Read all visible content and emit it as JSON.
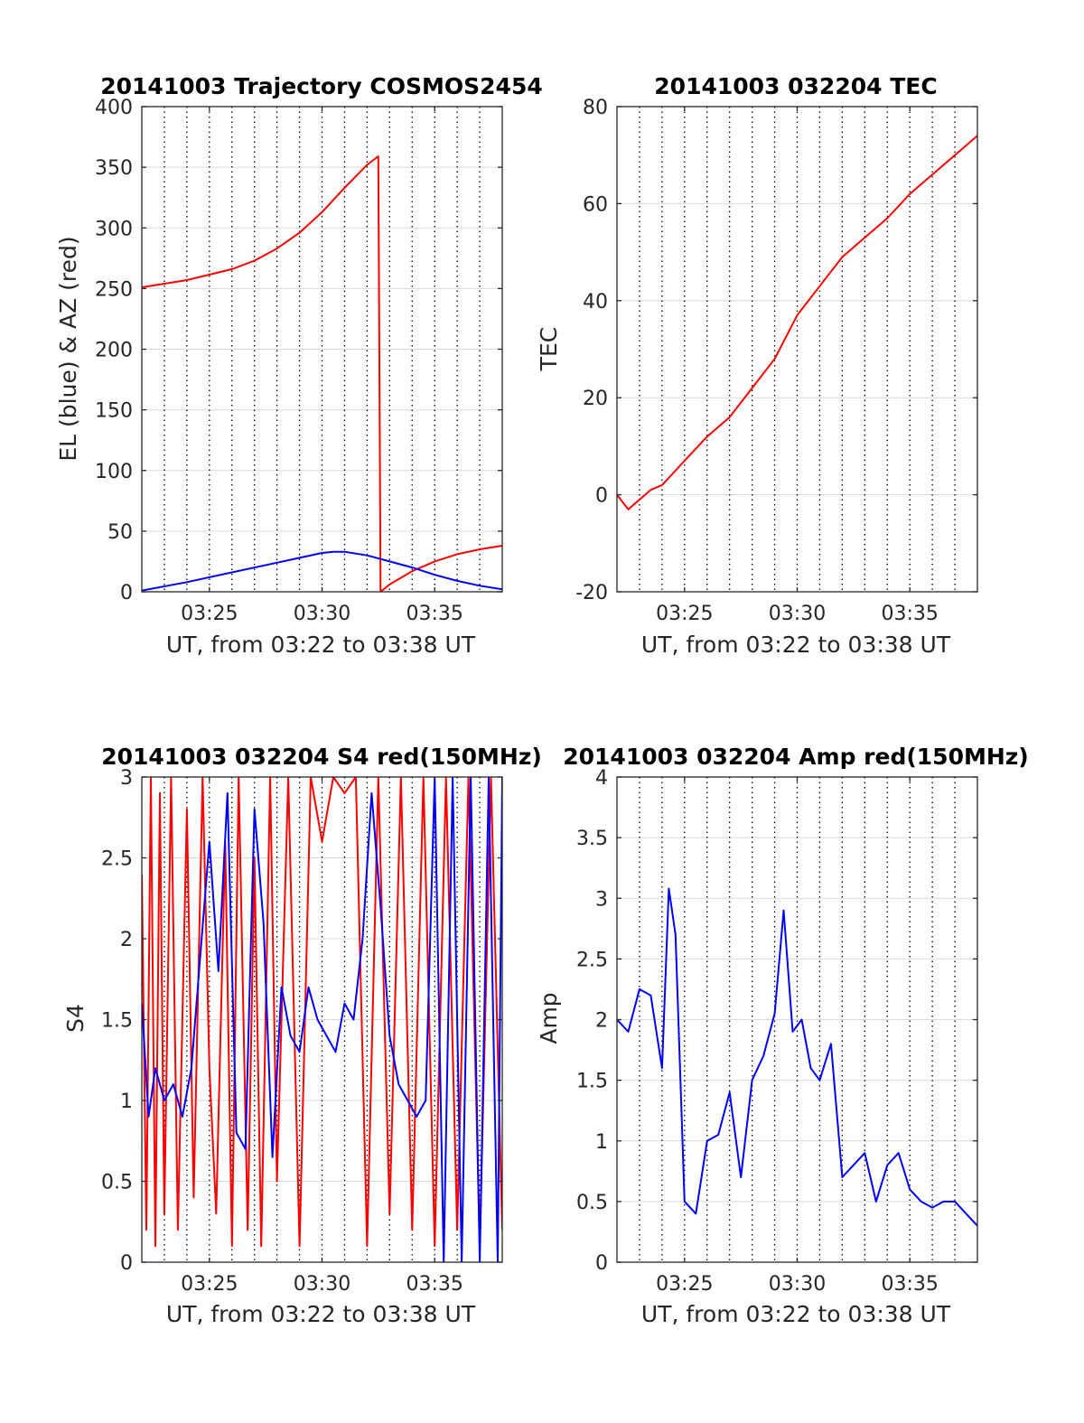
{
  "figure_colors": {
    "background": "#ffffff",
    "axis": "#262626",
    "grid": "#d9d9d9",
    "vgrid": "#000000",
    "red": "#ff0000",
    "blue": "#0000ff"
  },
  "chart_data": [
    {
      "type": "line",
      "title": "20141003 Trajectory COSMOS2454",
      "xlabel": "UT, from 03:22 to 03:38 UT",
      "ylabel": "EL (blue) & AZ (red)",
      "xlim": [
        "03:22",
        "03:38"
      ],
      "ylim": [
        0,
        400
      ],
      "xticks": [
        "03:25",
        "03:30",
        "03:35"
      ],
      "yticks": [
        0,
        50,
        100,
        150,
        200,
        250,
        300,
        350,
        400
      ],
      "grid": true,
      "series": [
        {
          "color": "red",
          "x": [
            "03:22",
            "03:24",
            "03:26",
            "03:27",
            "03:28",
            "03:29",
            "03:30",
            "03:31",
            "03:32",
            "03:32.5",
            "03:32.6",
            "03:33",
            "03:34",
            "03:35",
            "03:36",
            "03:37",
            "03:38"
          ],
          "values": [
            251,
            257,
            266,
            273,
            283,
            296,
            313,
            333,
            352,
            359,
            0,
            6,
            17,
            25,
            31,
            35,
            38
          ]
        },
        {
          "color": "blue",
          "x": [
            "03:22",
            "03:24",
            "03:26",
            "03:28",
            "03:29",
            "03:30",
            "03:30.5",
            "03:31",
            "03:32",
            "03:33",
            "03:34",
            "03:35",
            "03:36",
            "03:37",
            "03:38"
          ],
          "values": [
            1,
            8,
            16,
            24,
            28,
            32,
            33,
            33,
            30,
            25,
            20,
            14,
            9,
            5,
            2
          ]
        }
      ]
    },
    {
      "type": "line",
      "title": "20141003 032204 TEC",
      "xlabel": "UT, from 03:22 to 03:38 UT",
      "ylabel": "TEC",
      "xlim": [
        "03:22",
        "03:38"
      ],
      "ylim": [
        -20,
        80
      ],
      "xticks": [
        "03:25",
        "03:30",
        "03:35"
      ],
      "yticks": [
        -20,
        0,
        20,
        40,
        60,
        80
      ],
      "grid": true,
      "series": [
        {
          "color": "red",
          "x": [
            "03:22",
            "03:22.5",
            "03:23",
            "03:23.5",
            "03:24",
            "03:25",
            "03:26",
            "03:27",
            "03:28",
            "03:29",
            "03:30",
            "03:31",
            "03:32",
            "03:33",
            "03:34",
            "03:35",
            "03:36",
            "03:37",
            "03:38"
          ],
          "values": [
            0,
            -3,
            -1,
            1,
            2,
            7,
            12,
            16,
            22,
            28,
            37,
            43,
            49,
            53,
            57,
            62,
            66,
            70,
            74
          ]
        }
      ]
    },
    {
      "type": "line",
      "title": "20141003 032204 S4 red(150MHz)",
      "xlabel": "UT, from 03:22 to 03:38 UT",
      "ylabel": "S4",
      "xlim": [
        "03:22",
        "03:38"
      ],
      "ylim": [
        0,
        3
      ],
      "xticks": [
        "03:25",
        "03:30",
        "03:35"
      ],
      "yticks": [
        0,
        0.5,
        1,
        1.5,
        2,
        2.5,
        3
      ],
      "grid": true,
      "series": [
        {
          "color": "red",
          "x": [
            "03:22",
            "03:22.2",
            "03:22.4",
            "03:22.6",
            "03:22.8",
            "03:23",
            "03:23.3",
            "03:23.6",
            "03:24",
            "03:24.3",
            "03:24.7",
            "03:25",
            "03:25.3",
            "03:25.7",
            "03:26",
            "03:26.3",
            "03:26.7",
            "03:27",
            "03:27.3",
            "03:27.7",
            "03:28",
            "03:28.5",
            "03:29",
            "03:29.5",
            "03:30",
            "03:30.5",
            "03:31",
            "03:31.5",
            "03:32",
            "03:32.5",
            "03:33",
            "03:33.5",
            "03:34",
            "03:34.5",
            "03:35",
            "03:35.5",
            "03:36",
            "03:36.5",
            "03:37",
            "03:37.5",
            "03:38"
          ],
          "values": [
            2.4,
            0.2,
            3,
            0.1,
            2.9,
            0.3,
            3,
            0.2,
            2.8,
            0.4,
            3,
            1.2,
            0.3,
            2.6,
            0.1,
            3,
            0.2,
            2.5,
            0.1,
            3,
            0.5,
            3,
            0.1,
            3,
            2.6,
            3,
            2.9,
            3,
            0.1,
            3,
            0.3,
            3,
            0.2,
            3,
            0.1,
            3,
            0.2,
            3,
            0.1,
            3,
            0.2
          ]
        },
        {
          "color": "blue",
          "x": [
            "03:22",
            "03:22.3",
            "03:22.6",
            "03:23",
            "03:23.4",
            "03:23.8",
            "03:24.2",
            "03:24.6",
            "03:25",
            "03:25.4",
            "03:25.8",
            "03:26.2",
            "03:26.6",
            "03:27",
            "03:27.4",
            "03:27.8",
            "03:28.2",
            "03:28.6",
            "03:29",
            "03:29.4",
            "03:29.8",
            "03:30.2",
            "03:30.6",
            "03:31",
            "03:31.4",
            "03:31.8",
            "03:32.2",
            "03:32.6",
            "03:33",
            "03:33.4",
            "03:33.8",
            "03:34.2",
            "03:34.6",
            "03:35",
            "03:35.4",
            "03:35.8",
            "03:36.2",
            "03:36.6",
            "03:37",
            "03:37.4",
            "03:37.8",
            "03:38"
          ],
          "values": [
            1.6,
            0.9,
            1.2,
            1,
            1.1,
            0.9,
            1.2,
            1.9,
            2.6,
            1.8,
            2.9,
            0.8,
            0.7,
            2.8,
            2.1,
            0.65,
            1.7,
            1.4,
            1.3,
            1.7,
            1.5,
            1.4,
            1.3,
            1.6,
            1.5,
            2.0,
            2.9,
            2.2,
            1.4,
            1.1,
            1.0,
            0.9,
            1.0,
            3,
            0,
            3,
            0,
            3,
            0,
            3,
            0,
            3
          ]
        }
      ]
    },
    {
      "type": "line",
      "title": "20141003 032204 Amp red(150MHz)",
      "xlabel": "UT, from 03:22 to 03:38 UT",
      "ylabel": "Amp",
      "xlim": [
        "03:22",
        "03:38"
      ],
      "ylim": [
        0,
        4
      ],
      "xticks": [
        "03:25",
        "03:30",
        "03:35"
      ],
      "yticks": [
        0,
        0.5,
        1,
        1.5,
        2,
        2.5,
        3,
        3.5,
        4
      ],
      "grid": true,
      "series": [
        {
          "color": "blue",
          "x": [
            "03:22",
            "03:22.5",
            "03:23",
            "03:23.5",
            "03:24",
            "03:24.3",
            "03:24.6",
            "03:25",
            "03:25.5",
            "03:26",
            "03:26.5",
            "03:27",
            "03:27.5",
            "03:28",
            "03:28.5",
            "03:29",
            "03:29.4",
            "03:29.8",
            "03:30.2",
            "03:30.6",
            "03:31",
            "03:31.5",
            "03:32",
            "03:32.5",
            "03:33",
            "03:33.5",
            "03:34",
            "03:34.5",
            "03:35",
            "03:35.5",
            "03:36",
            "03:36.5",
            "03:37",
            "03:37.5",
            "03:38"
          ],
          "values": [
            2.0,
            1.9,
            2.25,
            2.2,
            1.6,
            3.08,
            2.7,
            0.5,
            0.4,
            1.0,
            1.05,
            1.4,
            0.7,
            1.5,
            1.7,
            2.05,
            2.9,
            1.9,
            2.0,
            1.6,
            1.5,
            1.8,
            0.7,
            0.8,
            0.9,
            0.5,
            0.8,
            0.9,
            0.6,
            0.5,
            0.45,
            0.5,
            0.5,
            0.4,
            0.3
          ]
        }
      ]
    }
  ]
}
